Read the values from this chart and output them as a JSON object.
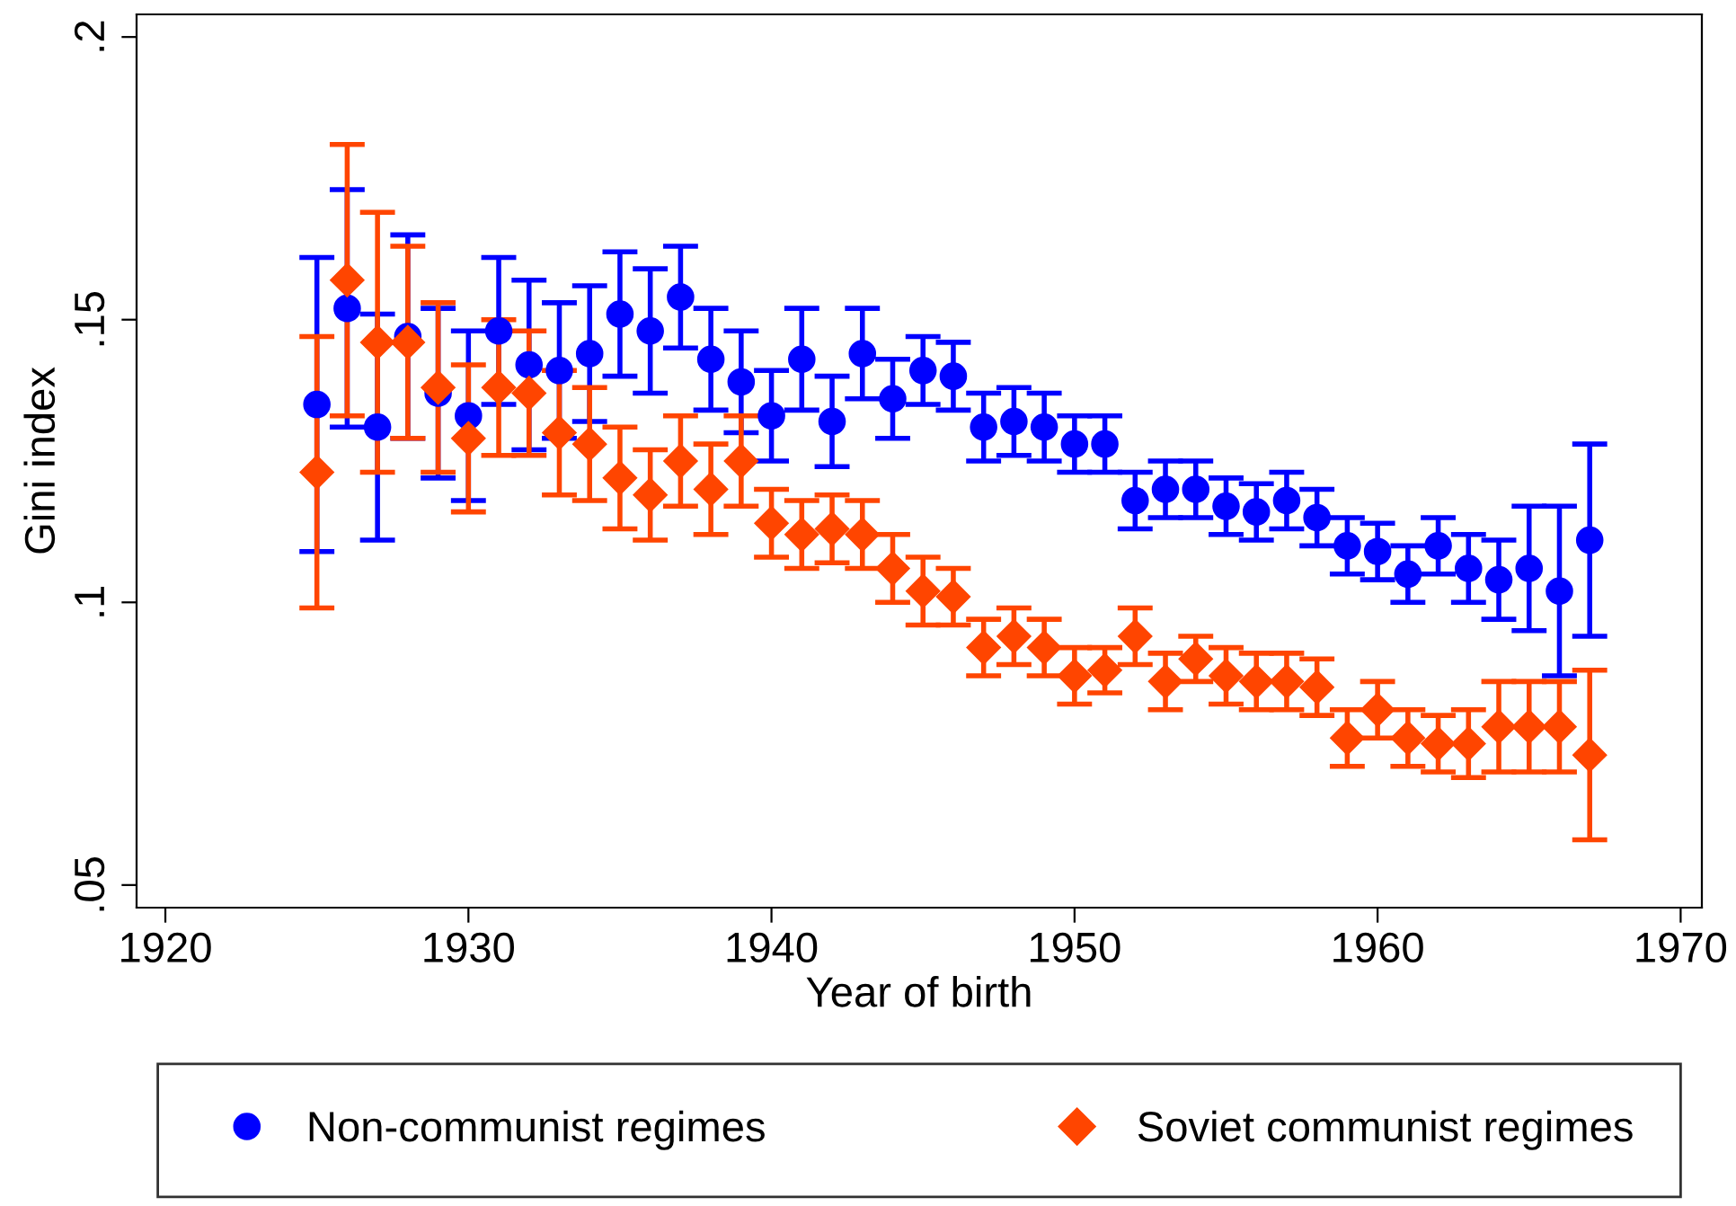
{
  "chart_data": {
    "type": "scatter",
    "xlabel": "Year of birth",
    "ylabel": "Gini index",
    "x": [
      1925,
      1926,
      1927,
      1928,
      1929,
      1930,
      1931,
      1932,
      1933,
      1934,
      1935,
      1936,
      1937,
      1938,
      1939,
      1940,
      1941,
      1942,
      1943,
      1944,
      1945,
      1946,
      1947,
      1948,
      1949,
      1950,
      1951,
      1952,
      1953,
      1954,
      1955,
      1956,
      1957,
      1958,
      1959,
      1960,
      1961,
      1962,
      1963,
      1964,
      1965,
      1966,
      1967
    ],
    "series": [
      {
        "name": "Non-communist regimes",
        "color": "#0000ff",
        "marker": "circle",
        "values": [
          0.135,
          0.152,
          0.131,
          0.147,
          0.137,
          0.133,
          0.148,
          0.142,
          0.141,
          0.144,
          0.151,
          0.148,
          0.154,
          0.143,
          0.139,
          0.133,
          0.143,
          0.132,
          0.144,
          0.136,
          0.141,
          0.14,
          0.131,
          0.132,
          0.131,
          0.128,
          0.128,
          0.118,
          0.12,
          0.12,
          0.117,
          0.116,
          0.118,
          0.115,
          0.11,
          0.109,
          0.105,
          0.11,
          0.106,
          0.104,
          0.106,
          0.102,
          0.111
        ],
        "errors": [
          0.026,
          0.021,
          0.02,
          0.018,
          0.015,
          0.015,
          0.013,
          0.015,
          0.012,
          0.012,
          0.011,
          0.011,
          0.009,
          0.009,
          0.009,
          0.008,
          0.009,
          0.008,
          0.008,
          0.007,
          0.006,
          0.006,
          0.006,
          0.006,
          0.006,
          0.005,
          0.005,
          0.005,
          0.005,
          0.005,
          0.005,
          0.005,
          0.005,
          0.005,
          0.005,
          0.005,
          0.005,
          0.005,
          0.006,
          0.007,
          0.011,
          0.015,
          0.017
        ]
      },
      {
        "name": "Soviet communist regimes",
        "color": "#ff4500",
        "marker": "diamond",
        "values": [
          0.123,
          0.157,
          0.146,
          0.146,
          0.138,
          0.129,
          0.138,
          0.137,
          0.13,
          0.128,
          0.122,
          0.119,
          0.125,
          0.12,
          0.125,
          0.114,
          0.112,
          0.113,
          0.112,
          0.106,
          0.102,
          0.101,
          0.092,
          0.094,
          0.092,
          0.087,
          0.088,
          0.094,
          0.086,
          0.09,
          0.087,
          0.086,
          0.086,
          0.085,
          0.076,
          0.081,
          0.076,
          0.075,
          0.075,
          0.078,
          0.078,
          0.078,
          0.073
        ],
        "errors": [
          0.024,
          0.024,
          0.023,
          0.017,
          0.015,
          0.013,
          0.012,
          0.011,
          0.011,
          0.01,
          0.009,
          0.008,
          0.008,
          0.008,
          0.008,
          0.006,
          0.006,
          0.006,
          0.006,
          0.006,
          0.006,
          0.005,
          0.005,
          0.005,
          0.005,
          0.005,
          0.004,
          0.005,
          0.005,
          0.004,
          0.005,
          0.005,
          0.005,
          0.005,
          0.005,
          0.005,
          0.005,
          0.005,
          0.006,
          0.008,
          0.008,
          0.008,
          0.015
        ]
      }
    ],
    "xlim": [
      1919.05,
      1970.7
    ],
    "xticks": [
      1920,
      1930,
      1940,
      1950,
      1960,
      1970
    ],
    "ylim": [
      0.046,
      0.204
    ],
    "yticks": [
      {
        "value": 0.05,
        "label": ".05"
      },
      {
        "value": 0.1,
        "label": ".1"
      },
      {
        "value": 0.15,
        "label": ".15"
      },
      {
        "value": 0.2,
        "label": ".2"
      }
    ],
    "grid": false,
    "legend": "bottom"
  }
}
